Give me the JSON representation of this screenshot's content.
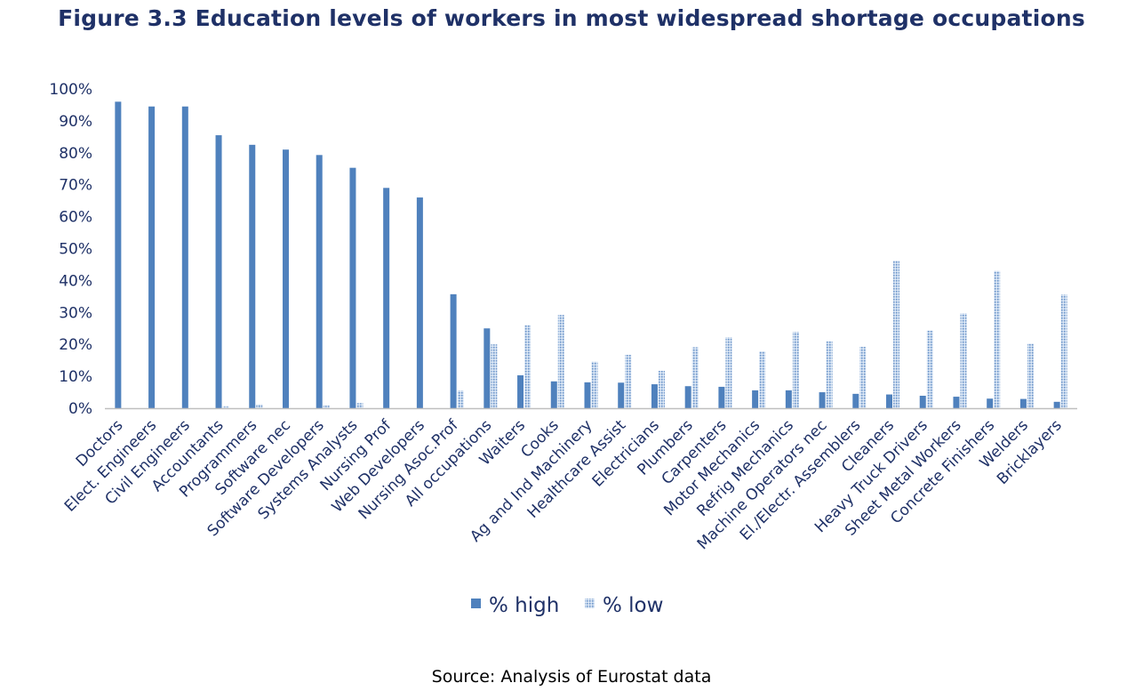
{
  "title": "Figure 3.3 Education levels of workers in most widespread shortage occupations",
  "source": "Source: Analysis of Eurostat data",
  "colors": {
    "high": "#4f81bd",
    "low_fill": "#c6d8ee",
    "low_stroke": "#4f81bd",
    "text": "#1f3167",
    "axis": "#bfbfbf"
  },
  "chart_data": {
    "type": "bar",
    "title": "Figure 3.3 Education levels of workers in most widespread shortage occupations",
    "xlabel": "",
    "ylabel": "",
    "ylim": [
      0,
      100
    ],
    "y_ticks": [
      "0%",
      "10%",
      "20%",
      "30%",
      "40%",
      "50%",
      "60%",
      "70%",
      "80%",
      "90%",
      "100%"
    ],
    "grid": false,
    "legend_position": "bottom",
    "categories": [
      "Doctors",
      "Elect. Engineers",
      "Civil Engineers",
      "Accountants",
      "Programmers",
      "Software nec",
      "Software Developers",
      "Systems Analysts",
      "Nursing Prof",
      "Web Developers",
      "Nursing Asoc.Prof",
      "All occupations",
      "Waiters",
      "Cooks",
      "Ag and Ind Machinery",
      "Healthcare Assist",
      "Electricians",
      "Plumbers",
      "Carpenters",
      "Motor Mechanics",
      "Refrig Mechanics",
      "Machine Operators nec",
      "El./Electr. Assemblers",
      "Cleaners",
      "Heavy Truck Drivers",
      "Sheet Metal Workers",
      "Concrete Finishers",
      "Welders",
      "Bricklayers"
    ],
    "series": [
      {
        "name": "% high",
        "values": [
          96,
          94.5,
          94.5,
          85.5,
          82.5,
          81,
          79.3,
          75.3,
          69,
          66,
          35.7,
          25,
          10.3,
          8.4,
          8.1,
          8,
          7.5,
          6.9,
          6.7,
          5.6,
          5.6,
          5,
          4.5,
          4.3,
          3.9,
          3.6,
          3,
          2.9,
          2
        ]
      },
      {
        "name": "% low",
        "values": [
          0,
          0,
          0,
          0.6,
          1.2,
          0,
          0.8,
          1.6,
          0,
          0,
          5.5,
          20,
          26,
          29.2,
          14.6,
          16.7,
          11.7,
          19.1,
          22.2,
          17.8,
          23.9,
          20.9,
          19.2,
          46.2,
          24.3,
          29.7,
          43,
          20.2,
          35.6
        ]
      }
    ]
  }
}
